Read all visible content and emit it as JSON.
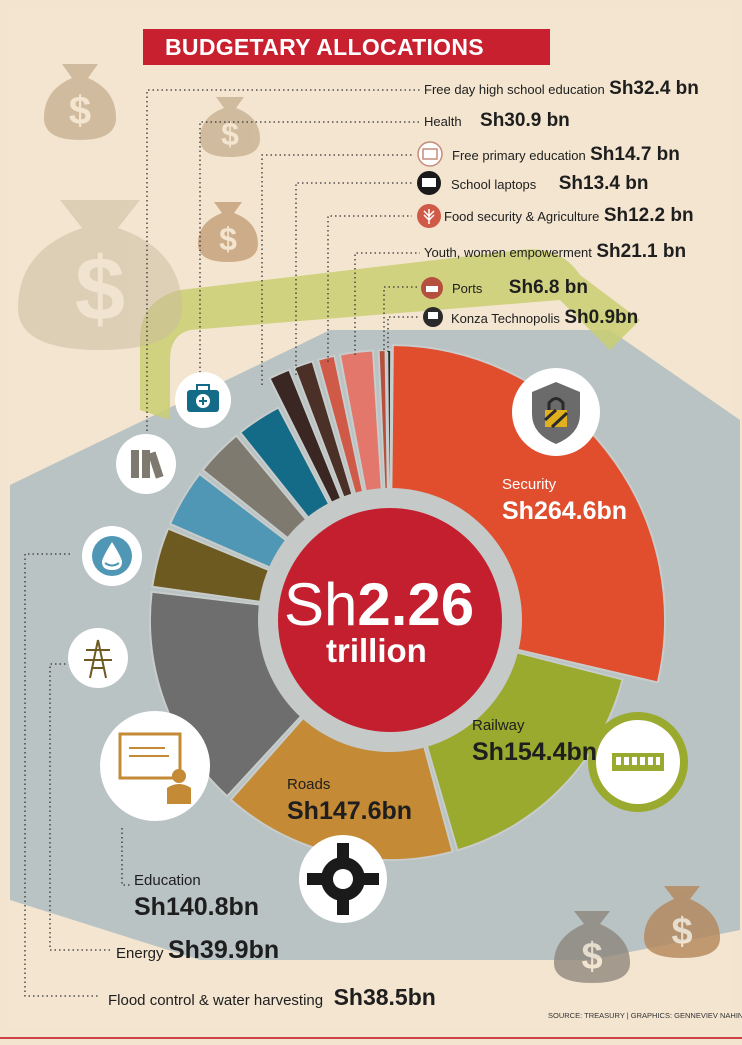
{
  "title": "BUDGETARY ALLOCATIONS",
  "center": {
    "currency": "Sh",
    "amount": "2.26",
    "unit": "trillion"
  },
  "source": "SOURCE: TREASURY | GRAPHICS: GENNEVIEV NAHINGA",
  "chart_data": {
    "type": "pie",
    "title": "BUDGETARY ALLOCATIONS",
    "total_label": "Sh2.26 trillion",
    "categories": [
      "Security",
      "Railway",
      "Roads",
      "Education",
      "Energy",
      "Flood control & water harvesting",
      "Free day high school education",
      "Health",
      "Free primary education",
      "School laptops",
      "Food security & Agriculture",
      "Youth, women empowerment",
      "Ports",
      "Konza Technopolis"
    ],
    "values": [
      264.6,
      154.4,
      147.6,
      140.8,
      39.9,
      38.5,
      32.4,
      30.9,
      14.7,
      13.4,
      12.2,
      21.1,
      6.8,
      0.9
    ],
    "value_labels": [
      "Sh264.6bn",
      "Sh154.4bn",
      "Sh147.6bn",
      "Sh140.8bn",
      "Sh39.9bn",
      "Sh38.5bn",
      "Sh32.4 bn",
      "Sh30.9 bn",
      "Sh14.7 bn",
      "Sh13.4 bn",
      "Sh12.2 bn",
      "Sh21.1 bn",
      "Sh6.8 bn",
      "Sh0.9bn"
    ],
    "unit": "Sh billion",
    "colors": [
      "#e04e2e",
      "#9aaa2e",
      "#c48a35",
      "#6e6e6e",
      "#6c5a20",
      "#4f97b5",
      "#7e7a70",
      "#146b87",
      "#3a2622",
      "#4a3026",
      "#cf5a48",
      "#e4776c",
      "#b5503e",
      "#2a2a2a"
    ],
    "legend": "none"
  },
  "labels": {
    "security": {
      "name": "Security",
      "value": "Sh264.6bn"
    },
    "railway": {
      "name": "Railway",
      "value": "Sh154.4bn"
    },
    "roads": {
      "name": "Roads",
      "value": "Sh147.6bn"
    },
    "education": {
      "name": "Education",
      "value": "Sh140.8bn"
    },
    "energy": {
      "name": "Energy",
      "value": "Sh39.9bn"
    },
    "flood": {
      "name": "Flood control & water harvesting",
      "value": "Sh38.5bn"
    },
    "highschool": {
      "name": "Free day high school education",
      "value": "Sh32.4 bn"
    },
    "health": {
      "name": "Health",
      "value": "Sh30.9 bn"
    },
    "primary": {
      "name": "Free primary education",
      "value": "Sh14.7 bn"
    },
    "laptops": {
      "name": "School laptops",
      "value": "Sh13.4 bn"
    },
    "food": {
      "name": "Food security & Agriculture",
      "value": "Sh12.2 bn"
    },
    "youth": {
      "name": "Youth, women empowerment",
      "value": "Sh21.1 bn"
    },
    "ports": {
      "name": "Ports",
      "value": "Sh6.8 bn"
    },
    "konza": {
      "name": "Konza Technopolis",
      "value": "Sh0.9bn"
    }
  },
  "icons": [
    "money-bag-icon",
    "shield-lock-icon",
    "railway-icon",
    "roundabout-icon",
    "teacher-board-icon",
    "power-pylon-icon",
    "water-drop-icon",
    "books-icon",
    "medical-kit-icon",
    "laptop-icon",
    "wheat-icon",
    "ship-icon",
    "computer-icon"
  ]
}
